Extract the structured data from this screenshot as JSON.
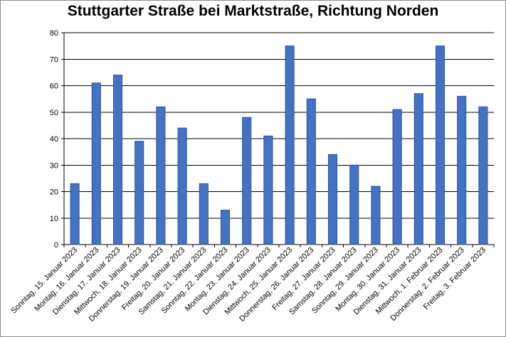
{
  "chart_data": {
    "type": "bar",
    "title": "Stuttgarter Straße bei Marktstraße, Richtung Norden",
    "xlabel": "",
    "ylabel": "",
    "ylim": [
      0,
      80
    ],
    "yticks": [
      0,
      10,
      20,
      30,
      40,
      50,
      60,
      70,
      80
    ],
    "grid": true,
    "legend": "none",
    "bar_color": "#4472C4",
    "bar_edge_color": "#2F528F",
    "categories": [
      "Sonntag, 15. Januar 2023",
      "Montag, 16. Januar 2023",
      "Dienstag, 17. Januar 2023",
      "Mittwoch, 18. Januar 2023",
      "Donnerstag, 19. Januar 2023",
      "Freitag, 20. Januar 2023",
      "Samstag, 21. Januar 2023",
      "Sonntag, 22. Januar 2023",
      "Montag, 23. Januar 2023",
      "Dienstag, 24. Januar 2023",
      "Mittwoch, 25. Januar 2023",
      "Donnerstag, 26. Januar 2023",
      "Freitag, 27. Januar 2023",
      "Samstag, 28. Januar 2023",
      "Sonntag, 29. Januar 2023",
      "Montag, 30. Januar 2023",
      "Dienstag, 31. Januar 2023",
      "Mittwoch, 1. Februar 2023",
      "Donnerstag, 2. Februar 2023",
      "Freitag, 3. Februar 2023"
    ],
    "values": [
      23,
      61,
      64,
      39,
      52,
      44,
      23,
      13,
      48,
      41,
      75,
      55,
      34,
      30,
      22,
      51,
      57,
      75,
      56,
      52
    ]
  }
}
